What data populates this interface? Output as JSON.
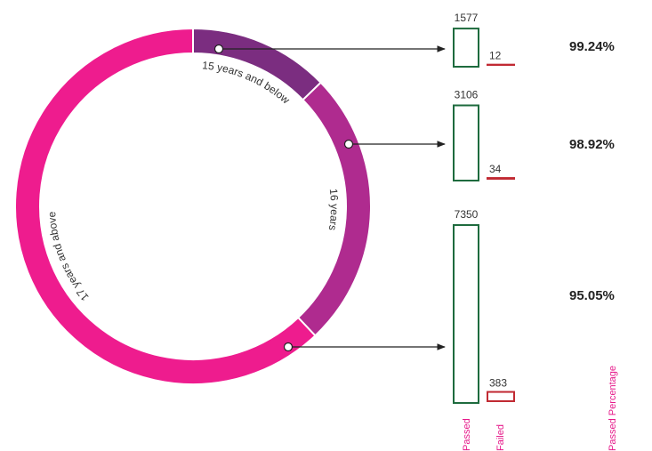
{
  "chart_data": {
    "type": "donut_bars",
    "categories": [
      "15 years and below",
      "16 years",
      "17 years and above"
    ],
    "segment_colors": [
      "#7b2d80",
      "#af2b8f",
      "#ee1c8e"
    ],
    "series": [
      {
        "name": "Passed",
        "color": "#1e6b3e",
        "values": [
          1577,
          3106,
          7350
        ]
      },
      {
        "name": "Failed",
        "color": "#c12a33",
        "values": [
          12,
          34,
          383
        ]
      }
    ],
    "passed_percentage": {
      "name": "Passed Percentage",
      "values": [
        99.24,
        98.92,
        95.05
      ],
      "value_labels": [
        "99.24%",
        "98.92%",
        "95.05%"
      ]
    }
  }
}
